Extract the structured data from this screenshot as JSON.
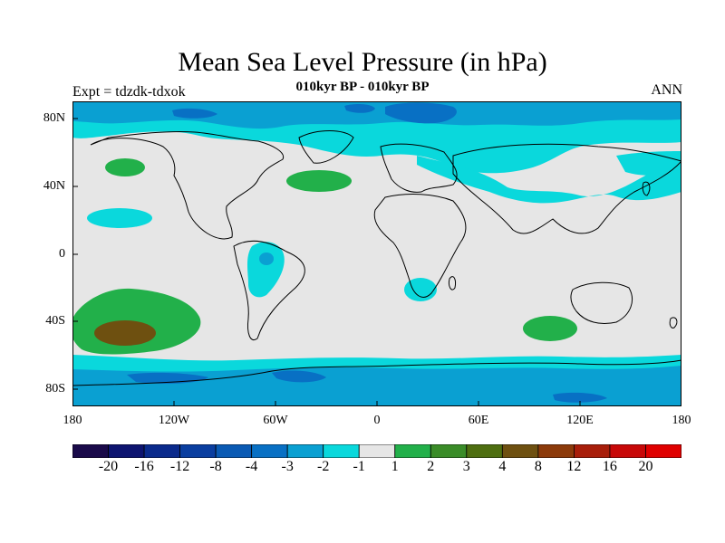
{
  "title": "Mean Sea Level Pressure (in hPa)",
  "subtitle": "010kyr BP - 010kyr BP",
  "left_label": "Expt = tdzdk-tdxok",
  "right_label": "ANN",
  "map": {
    "lat_ticks": [
      "80N",
      "40N",
      "0",
      "40S",
      "80S"
    ],
    "lon_ticks": [
      "180",
      "120W",
      "60W",
      "0",
      "60E",
      "120E",
      "180"
    ]
  },
  "colorbar": {
    "labels": [
      "-20",
      "-16",
      "-12",
      "-8",
      "-4",
      "-3",
      "-2",
      "-1",
      "1",
      "2",
      "3",
      "4",
      "8",
      "12",
      "16",
      "20"
    ],
    "colors": [
      "#1a0a4a",
      "#0d1470",
      "#0a2a8c",
      "#0a3ea0",
      "#0a5ab4",
      "#0870c4",
      "#0aa0d2",
      "#0ad8dc",
      "#e6e6e6",
      "#22b04a",
      "#3a8c28",
      "#4e6e10",
      "#6e5010",
      "#8c3a0a",
      "#a81e0a",
      "#c80808",
      "#e00000"
    ]
  },
  "colors": {
    "background_land_ocean": "#e6e6e6",
    "minus_1": "#0ad8dc",
    "minus_2": "#0aa0d2",
    "minus_3": "#0870c4",
    "minus_4": "#0a5ab4",
    "plus_2": "#22b04a",
    "plus_3": "#3a8c28",
    "plus_4": "#6e5010"
  }
}
